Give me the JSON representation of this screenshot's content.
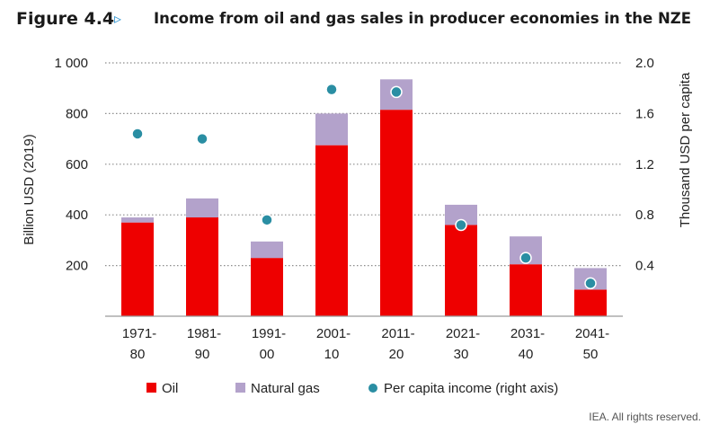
{
  "figure": {
    "label": "Figure 4.4",
    "arrow": "▹",
    "title": "Income from oil and gas sales in producer economies in the NZE",
    "credit": "IEA. All rights reserved."
  },
  "colors": {
    "oil": "#ee0000",
    "gas": "#b3a2cb",
    "per_capita": "#2a8ea3",
    "grid": "#8c8c8c"
  },
  "chart_data": {
    "type": "bar",
    "stacked": true,
    "title": "Income from oil and gas sales in producer economies in the NZE",
    "ylabel": "Billion USD (2019)",
    "y2label": "Thousand USD per capita",
    "ylim": [
      0,
      1000
    ],
    "y2lim": [
      0,
      2.0
    ],
    "yticks": [
      200,
      400,
      600,
      800,
      1000
    ],
    "ytick_labels": [
      "200",
      "400",
      "600",
      "800",
      "1 000"
    ],
    "y2ticks": [
      0.4,
      0.8,
      1.2,
      1.6,
      2.0
    ],
    "y2tick_labels": [
      "0.4",
      "0.8",
      "1.2",
      "1.6",
      "2.0"
    ],
    "categories": [
      [
        "1971-",
        "80"
      ],
      [
        "1981-",
        "90"
      ],
      [
        "1991-",
        "00"
      ],
      [
        "2001-",
        "10"
      ],
      [
        "2011-",
        "20"
      ],
      [
        "2021-",
        "30"
      ],
      [
        "2031-",
        "40"
      ],
      [
        "2041-",
        "50"
      ]
    ],
    "series": [
      {
        "name": "Oil",
        "kind": "bar",
        "axis": "left",
        "values": [
          370,
          390,
          230,
          675,
          815,
          360,
          205,
          105
        ]
      },
      {
        "name": "Natural gas",
        "kind": "bar",
        "axis": "left",
        "values": [
          20,
          75,
          65,
          125,
          120,
          80,
          110,
          85
        ]
      },
      {
        "name": "Per capita income (right axis)",
        "kind": "scatter",
        "axis": "right",
        "values": [
          1.44,
          1.4,
          0.76,
          1.79,
          1.77,
          0.72,
          0.46,
          0.26
        ]
      }
    ],
    "legend": {
      "position": "bottom"
    }
  }
}
